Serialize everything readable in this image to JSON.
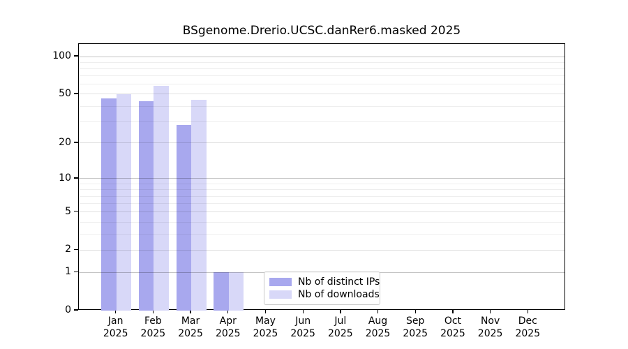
{
  "title": "BSgenome.Drerio.UCSC.danRer6.masked 2025",
  "chart_data": {
    "type": "bar",
    "categories": [
      "Jan",
      "Feb",
      "Mar",
      "Apr",
      "May",
      "Jun",
      "Jul",
      "Aug",
      "Sep",
      "Oct",
      "Nov",
      "Dec"
    ],
    "year_label": "2025",
    "series": [
      {
        "name": "Nb of distinct IPs",
        "color": "#a8a8ee",
        "values": [
          46,
          44,
          28,
          1,
          0,
          0,
          0,
          0,
          0,
          0,
          0,
          0
        ]
      },
      {
        "name": "Nb of downloads",
        "color": "#d8d8f8",
        "values": [
          50,
          58,
          45,
          1,
          0,
          0,
          0,
          0,
          0,
          0,
          0,
          0
        ]
      }
    ],
    "yscale": "log1p",
    "yticks": [
      0,
      1,
      2,
      5,
      10,
      20,
      50,
      100
    ],
    "ylim": [
      0,
      126
    ],
    "xlabel": "",
    "ylabel": "",
    "grid": "horizontal",
    "legend_position": "bottom-center"
  },
  "legend": {
    "item1": "Nb of distinct IPs",
    "item2": "Nb of downloads"
  }
}
